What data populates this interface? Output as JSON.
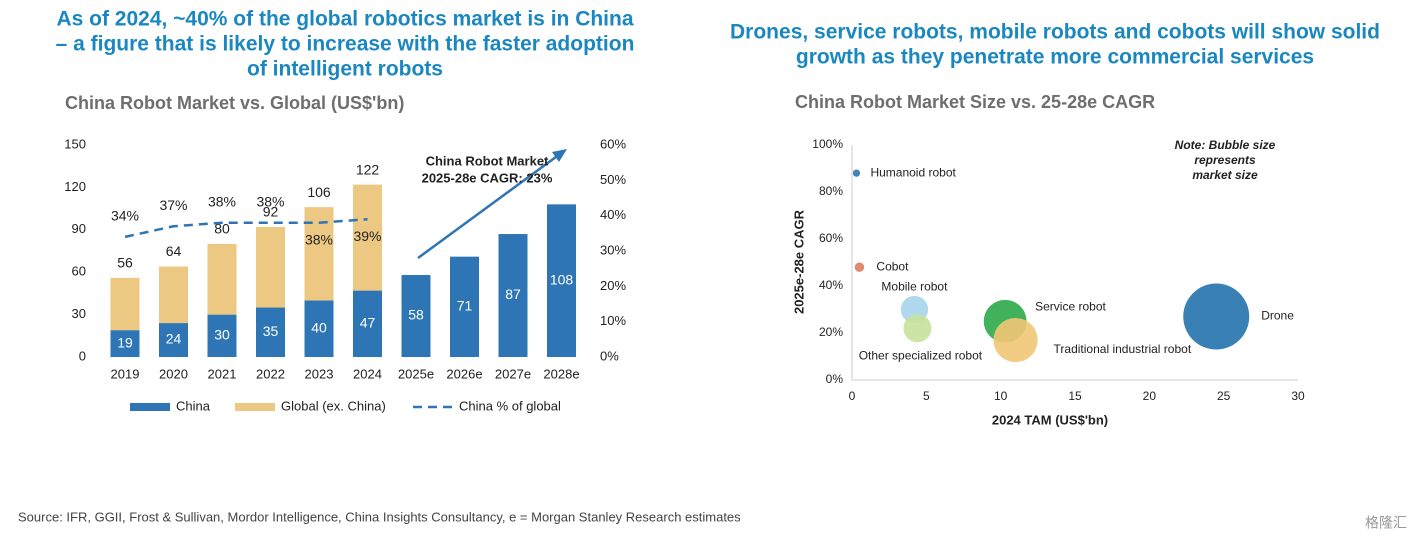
{
  "headlines": {
    "left": [
      "As  of 2024, ~40% of the global robotics market is in China",
      "– a figure that is likely to increase with the faster adoption",
      "of intelligent robots"
    ],
    "right": [
      "Drones, service robots, mobile robots and cobots will show solid",
      "growth as they penetrate more commercial services"
    ]
  },
  "chart_data": [
    {
      "type": "bar",
      "stacked": true,
      "title": "China Robot Market vs. Global (US$'bn)",
      "categories": [
        "2019",
        "2020",
        "2021",
        "2022",
        "2023",
        "2024",
        "2025e",
        "2026e",
        "2027e",
        "2028e"
      ],
      "series": [
        {
          "name": "China",
          "color": "#2e75b6",
          "values": [
            19,
            24,
            30,
            35,
            40,
            47,
            58,
            71,
            87,
            108
          ]
        },
        {
          "name": "Global (ex. China)",
          "color": "#ecc882",
          "values": [
            37,
            40,
            50,
            57,
            66,
            75,
            null,
            null,
            null,
            null
          ]
        },
        {
          "name": "China % of global",
          "type": "line",
          "axis": "y2",
          "color": "#2e75b6",
          "values": [
            34,
            37,
            38,
            38,
            38,
            39,
            null,
            null,
            null,
            null
          ],
          "value_labels": [
            "34%",
            "37%",
            "38%",
            "38%",
            "38%",
            "39%",
            null,
            null,
            null,
            null
          ]
        }
      ],
      "totals": [
        56,
        64,
        80,
        92,
        106,
        122,
        null,
        null,
        null,
        null
      ],
      "ylim": [
        0,
        150
      ],
      "yticks": [
        0,
        30,
        60,
        90,
        120,
        150
      ],
      "y2lim": [
        0,
        60
      ],
      "y2ticks": [
        {
          "value": 0,
          "label": "0%"
        },
        {
          "value": 10,
          "label": "10%"
        },
        {
          "value": 20,
          "label": "20%"
        },
        {
          "value": 30,
          "label": "30%"
        },
        {
          "value": 40,
          "label": "40%"
        },
        {
          "value": 50,
          "label": "50%"
        },
        {
          "value": 60,
          "label": "60%"
        }
      ],
      "annotation": [
        "China Robot Market",
        "2025-28e CAGR: 23%"
      ],
      "legend": "bottom"
    },
    {
      "type": "scatter",
      "title": "China Robot Market Size vs. 25-28e CAGR",
      "x_label": "2024 TAM (US$'bn)",
      "y_label": "2025e-28e CAGR",
      "note": [
        "Note: Bubble size",
        "represents",
        "market size"
      ],
      "names": [
        "Humanoid robot",
        "Cobot",
        "Mobile robot",
        "Other specialized robot",
        "Service robot",
        "Traditional industrial robot",
        "Drone"
      ],
      "x": [
        0.3,
        0.5,
        4.2,
        4.4,
        10.3,
        11,
        24.5
      ],
      "values": [
        88,
        48,
        30,
        22,
        25,
        17,
        27
      ],
      "sizes": [
        0.3,
        0.5,
        4.2,
        4.4,
        10.3,
        11,
        24.5
      ],
      "colors": [
        "#2e75b6",
        "#e07a5f",
        "#a9d5ec",
        "#c6e29b",
        "#2ea84a",
        "#f2c777",
        "#2373ad"
      ],
      "xlim": [
        0,
        30
      ],
      "xticks": [
        0,
        5,
        10,
        15,
        20,
        25,
        30
      ],
      "ylim": [
        0,
        100
      ],
      "yticks": [
        {
          "value": 0,
          "label": "0%"
        },
        {
          "value": 20,
          "label": "20%"
        },
        {
          "value": 40,
          "label": "40%"
        },
        {
          "value": 60,
          "label": "60%"
        },
        {
          "value": 80,
          "label": "80%"
        },
        {
          "value": 100,
          "label": "100%"
        }
      ]
    }
  ],
  "source": "Source: IFR, GGII, Frost & Sullivan, Mordor Intelligence, China Insights Consultancy, e = Morgan Stanley Research estimates",
  "watermark": "格隆汇"
}
